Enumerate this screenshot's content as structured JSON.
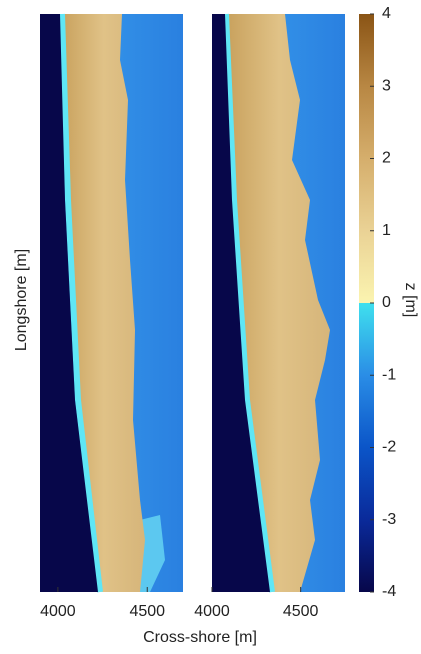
{
  "chart_data": {
    "type": "heatmap",
    "xlabel": "Cross-shore [m]",
    "ylabel": "Longshore [m]",
    "panels": [
      {
        "xlim": [
          3900,
          4700
        ],
        "xticks": [
          4000,
          4500
        ]
      },
      {
        "xlim": [
          4000,
          4750
        ],
        "xticks": [
          4000,
          4500
        ]
      }
    ],
    "colorbar": {
      "label": "z [m]",
      "lim": [
        -4,
        4
      ],
      "ticks": [
        -4,
        -3,
        -2,
        -1,
        0,
        1,
        2,
        3,
        4
      ]
    }
  }
}
